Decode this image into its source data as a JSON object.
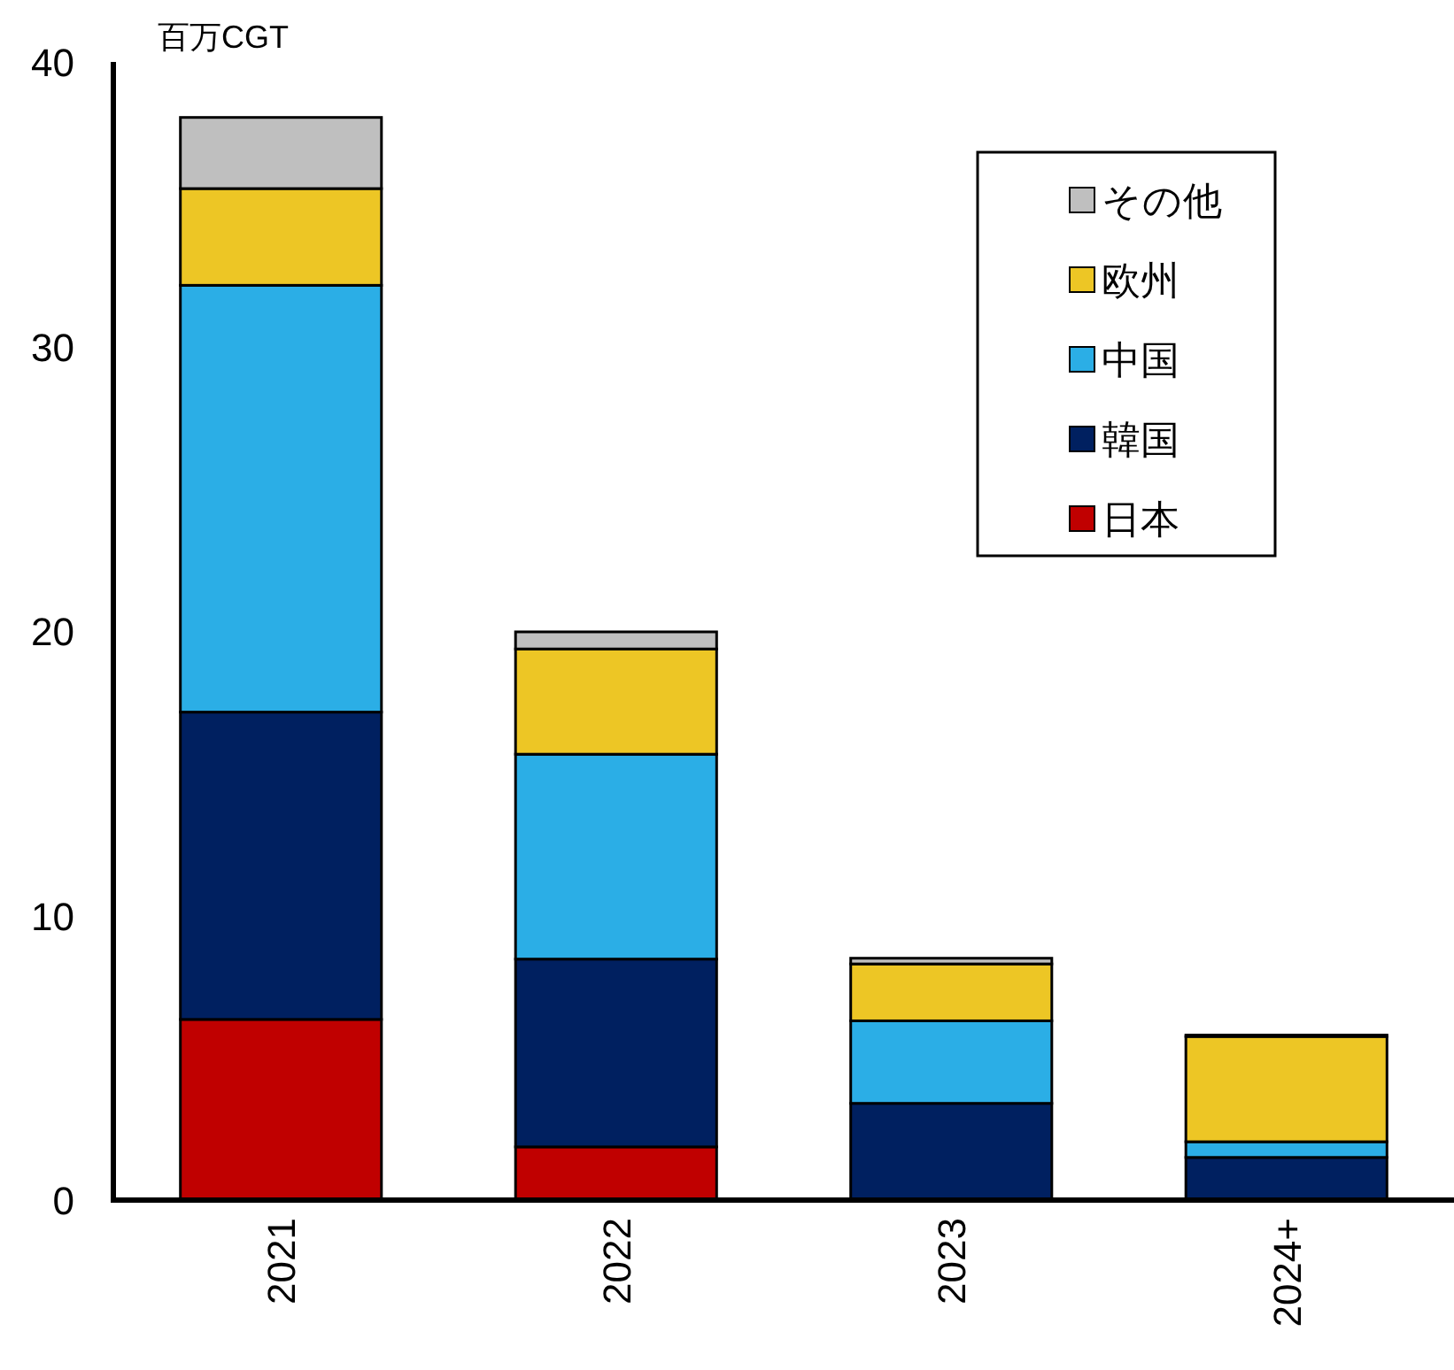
{
  "chart_data": {
    "type": "bar",
    "stacked": true,
    "ylabel": "百万CGT",
    "categories": [
      "2021",
      "2022",
      "2023",
      "2024+"
    ],
    "series": [
      {
        "name": "日本",
        "color": "#c00000",
        "values": [
          6.35,
          1.87,
          0,
          0
        ]
      },
      {
        "name": "韓国",
        "color": "#002060",
        "values": [
          10.8,
          6.6,
          3.4,
          1.5
        ]
      },
      {
        "name": "中国",
        "color": "#2baee6",
        "values": [
          15.0,
          7.2,
          2.9,
          0.55
        ]
      },
      {
        "name": "欧州",
        "color": "#edc625",
        "values": [
          3.4,
          3.7,
          2.0,
          3.7
        ]
      },
      {
        "name": "その他",
        "color": "#bfbfbf",
        "values": [
          2.5,
          0.6,
          0.2,
          0.05
        ]
      }
    ],
    "ylim": [
      0,
      40
    ],
    "yticks": [
      0,
      10,
      20,
      30,
      40
    ],
    "grid": false,
    "legend": "top right"
  }
}
